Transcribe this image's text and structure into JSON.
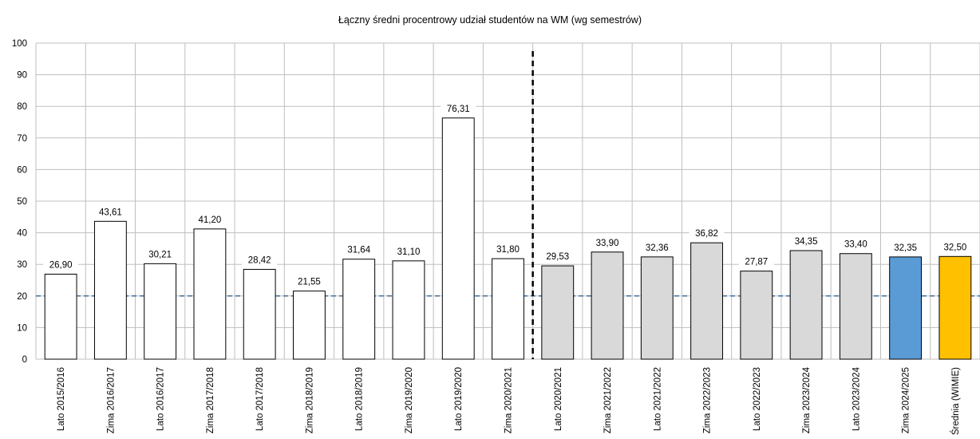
{
  "chart_data": {
    "type": "bar",
    "title": "Łączny średni procentrowy udział studentów na WM (wg semestrów)",
    "xlabel": "",
    "ylabel": "",
    "ylim": [
      0,
      100
    ],
    "yticks": [
      0,
      10,
      20,
      30,
      40,
      50,
      60,
      70,
      80,
      90,
      100
    ],
    "grid": true,
    "reference_line": 20,
    "divider_after_category": "Zima 2020/2021",
    "categories": [
      "Lato 2015/2016",
      "Zima 2016/2017",
      "Lato 2016/2017",
      "Zima 2017/2018",
      "Lato 2017/2018",
      "Zima 2018/2019",
      "Lato 2018/2019",
      "Zima 2019/2020",
      "Lato 2019/2020",
      "Zima 2020/2021",
      "Lato 2020/2021",
      "Zima 2021/2022",
      "Lato 2021/2022",
      "Zima 2022/2023",
      "Lato 2022/2023",
      "Zima 2023/2024",
      "Lato 2023/2024",
      "Zima 2024/2025",
      "Średnia (WIMIE)"
    ],
    "values": [
      26.9,
      43.61,
      30.21,
      41.2,
      28.42,
      21.55,
      31.64,
      31.1,
      76.31,
      31.8,
      29.53,
      33.9,
      32.36,
      36.82,
      27.87,
      34.35,
      33.4,
      32.35,
      32.5
    ],
    "value_labels": [
      "26,90",
      "43,61",
      "30,21",
      "41,20",
      "28,42",
      "21,55",
      "31,64",
      "31,10",
      "76,31",
      "31,80",
      "29,53",
      "33,90",
      "32,36",
      "36,82",
      "27,87",
      "34,35",
      "33,40",
      "32,35",
      "32,50"
    ],
    "bar_colors": [
      "#ffffff",
      "#ffffff",
      "#ffffff",
      "#ffffff",
      "#ffffff",
      "#ffffff",
      "#ffffff",
      "#ffffff",
      "#ffffff",
      "#ffffff",
      "#d9d9d9",
      "#d9d9d9",
      "#d9d9d9",
      "#d9d9d9",
      "#d9d9d9",
      "#d9d9d9",
      "#d9d9d9",
      "#5b9bd5",
      "#ffc000"
    ],
    "colors": {
      "bar_stroke": "#000000",
      "grid": "#bfbfbf",
      "reference_line": "#44709c",
      "divider": "#000000"
    }
  }
}
